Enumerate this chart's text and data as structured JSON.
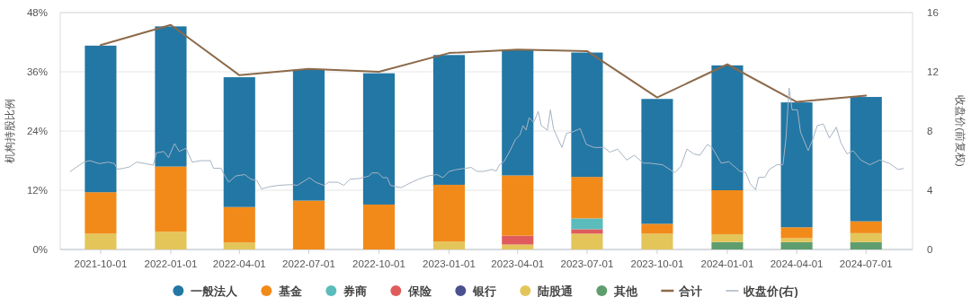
{
  "chart_data": {
    "type": "bar",
    "stacked": true,
    "ylabel": "机构持股比例",
    "y2label": "收盘价(前复权)",
    "x": [
      "2021-10-01",
      "2022-01-01",
      "2022-04-01",
      "2022-07-01",
      "2022-10-01",
      "2023-01-01",
      "2023-04-01",
      "2023-07-01",
      "2023-10-01",
      "2024-01-01",
      "2024-04-01",
      "2024-07-01"
    ],
    "xlim": [
      "2021-08-09",
      "2024-08-31"
    ],
    "xticks": [
      "2021-10-01",
      "2022-01-01",
      "2022-04-01",
      "2022-07-01",
      "2022-10-01",
      "2023-01-01",
      "2023-04-01",
      "2023-07-01",
      "2023-10-01",
      "2024-01-01",
      "2024-04-01",
      "2024-07-01"
    ],
    "ylim": [
      0,
      48
    ],
    "yticks": [
      {
        "value": 0,
        "label": "0%"
      },
      {
        "value": 12,
        "label": "12%"
      },
      {
        "value": 24,
        "label": "24%"
      },
      {
        "value": 36,
        "label": "36%"
      },
      {
        "value": 48,
        "label": "48%"
      }
    ],
    "y2lim": [
      0,
      16
    ],
    "y2ticks": [
      0,
      4,
      8,
      12,
      16
    ],
    "grid": "y",
    "legend": "bottom",
    "series": [
      {
        "name": "其他",
        "color": "#5e9e6e",
        "values": [
          null,
          null,
          null,
          null,
          null,
          null,
          null,
          null,
          null,
          1.5,
          1.5,
          1.5
        ]
      },
      {
        "name": "陆股通",
        "color": "#e3c55a",
        "values": [
          3.2,
          3.6,
          1.4,
          null,
          null,
          1.6,
          1.0,
          3.2,
          3.2,
          1.6,
          0.8,
          1.8
        ]
      },
      {
        "name": "银行",
        "color": "#4a5190",
        "values": [
          null,
          null,
          null,
          null,
          null,
          null,
          null,
          null,
          null,
          null,
          null,
          null
        ]
      },
      {
        "name": "保险",
        "color": "#e05c5c",
        "values": [
          null,
          null,
          null,
          null,
          null,
          null,
          1.8,
          0.9,
          null,
          null,
          null,
          null
        ]
      },
      {
        "name": "券商",
        "color": "#5bbcbc",
        "values": [
          null,
          null,
          null,
          null,
          null,
          null,
          null,
          2.2,
          null,
          null,
          null,
          null
        ]
      },
      {
        "name": "基金",
        "color": "#f28a1a",
        "values": [
          8.4,
          13.2,
          7.2,
          9.9,
          9.1,
          11.5,
          12.2,
          8.4,
          2.0,
          8.9,
          2.2,
          2.4
        ]
      },
      {
        "name": "一般法人",
        "color": "#2277a4",
        "values": [
          29.7,
          28.4,
          26.3,
          26.5,
          26.6,
          26.3,
          25.4,
          25.2,
          25.3,
          25.3,
          25.3,
          25.2
        ]
      },
      {
        "name": "合计",
        "type": "line",
        "color": "#8c6a4a",
        "values": [
          41.4,
          45.5,
          35.3,
          36.6,
          36.0,
          39.8,
          40.5,
          40.2,
          30.8,
          37.5,
          29.9,
          31.2
        ]
      },
      {
        "name": "收盘价(右)",
        "type": "line",
        "axis": "y2",
        "color": "#a8b4c4",
        "x": [
          "2021-08-22",
          "2021-08-28",
          "2021-09-09",
          "2021-09-17",
          "2021-09-29",
          "2021-10-11",
          "2021-10-19",
          "2021-10-23",
          "2021-10-31",
          "2021-11-08",
          "2021-11-17",
          "2021-11-29",
          "2021-12-09",
          "2021-12-13",
          "2021-12-23",
          "2021-12-29",
          "2022-01-06",
          "2022-01-12",
          "2022-01-21",
          "2022-01-29",
          "2022-02-10",
          "2022-02-22",
          "2022-02-26",
          "2022-03-08",
          "2022-03-12",
          "2022-03-18",
          "2022-03-27",
          "2022-04-08",
          "2022-04-16",
          "2022-04-24",
          "2022-04-30",
          "2022-05-10",
          "2022-05-23",
          "2022-06-08",
          "2022-06-16",
          "2022-07-02",
          "2022-07-10",
          "2022-07-21",
          "2022-07-27",
          "2022-08-08",
          "2022-08-16",
          "2022-08-24",
          "2022-09-05",
          "2022-09-18",
          "2022-09-22",
          "2022-09-30",
          "2022-10-06",
          "2022-10-12",
          "2022-10-16",
          "2022-10-30",
          "2022-11-09",
          "2022-11-22",
          "2022-12-04",
          "2022-12-16",
          "2022-12-24",
          "2023-01-01",
          "2023-01-09",
          "2023-01-22",
          "2023-01-30",
          "2023-02-07",
          "2023-02-15",
          "2023-02-26",
          "2023-03-04",
          "2023-03-08",
          "2023-03-14",
          "2023-03-22",
          "2023-03-29",
          "2023-04-04",
          "2023-04-08",
          "2023-04-12",
          "2023-04-16",
          "2023-04-22",
          "2023-04-28",
          "2023-05-02",
          "2023-05-10",
          "2023-05-14",
          "2023-05-18",
          "2023-05-29",
          "2023-06-04",
          "2023-06-12",
          "2023-06-22",
          "2023-06-30",
          "2023-07-10",
          "2023-07-23",
          "2023-07-31",
          "2023-08-10",
          "2023-08-22",
          "2023-09-01",
          "2023-09-13",
          "2023-09-21",
          "2023-10-08",
          "2023-10-24",
          "2023-11-01",
          "2023-11-09",
          "2023-11-18",
          "2023-11-26",
          "2023-12-06",
          "2023-12-12",
          "2023-12-24",
          "2024-01-03",
          "2024-01-17",
          "2024-01-25",
          "2024-01-31",
          "2024-02-07",
          "2024-02-11",
          "2024-02-19",
          "2024-02-25",
          "2024-03-06",
          "2024-03-14",
          "2024-03-18",
          "2024-03-22",
          "2024-03-26",
          "2024-04-02",
          "2024-04-06",
          "2024-04-16",
          "2024-04-22",
          "2024-04-28",
          "2024-05-06",
          "2024-05-14",
          "2024-05-23",
          "2024-05-29",
          "2024-06-06",
          "2024-06-14",
          "2024-06-24",
          "2024-07-06",
          "2024-07-19",
          "2024-07-31",
          "2024-08-12",
          "2024-08-19"
        ],
        "values": [
          5.27,
          5.48,
          5.9,
          6.0,
          5.8,
          5.9,
          5.8,
          5.42,
          5.48,
          5.58,
          5.9,
          5.8,
          5.69,
          6.52,
          6.62,
          6.2,
          7.15,
          6.62,
          6.83,
          5.9,
          6.0,
          6.0,
          5.48,
          5.48,
          5.06,
          4.54,
          4.96,
          5.06,
          4.75,
          4.65,
          4.08,
          4.23,
          4.33,
          4.38,
          4.33,
          4.85,
          4.54,
          4.33,
          4.54,
          4.54,
          4.33,
          4.75,
          4.79,
          4.96,
          5.17,
          5.17,
          4.85,
          4.85,
          4.33,
          4.17,
          4.44,
          4.75,
          4.96,
          5.06,
          4.85,
          5.27,
          5.38,
          5.48,
          5.54,
          5.27,
          5.27,
          5.4,
          5.3,
          5.72,
          5.93,
          6.67,
          7.42,
          7.73,
          8.37,
          8.05,
          8.9,
          8.58,
          9.32,
          8.37,
          8.05,
          9.43,
          8.16,
          6.89,
          7.84,
          7.94,
          8.16,
          7.1,
          6.89,
          6.89,
          6.57,
          6.78,
          6.04,
          6.36,
          5.83,
          5.83,
          5.72,
          5.19,
          5.61,
          6.78,
          6.46,
          6.36,
          7.1,
          6.89,
          5.83,
          5.93,
          5.3,
          5.19,
          4.45,
          4.03,
          4.87,
          4.87,
          5.4,
          5.72,
          5.72,
          7.52,
          10.91,
          9.43,
          9.43,
          7.94,
          6.67,
          7.42,
          8.37,
          8.47,
          7.52,
          8.26,
          7.2,
          6.46,
          6.67,
          6.04,
          5.72,
          6.04,
          5.83,
          5.4,
          5.47
        ]
      }
    ]
  }
}
